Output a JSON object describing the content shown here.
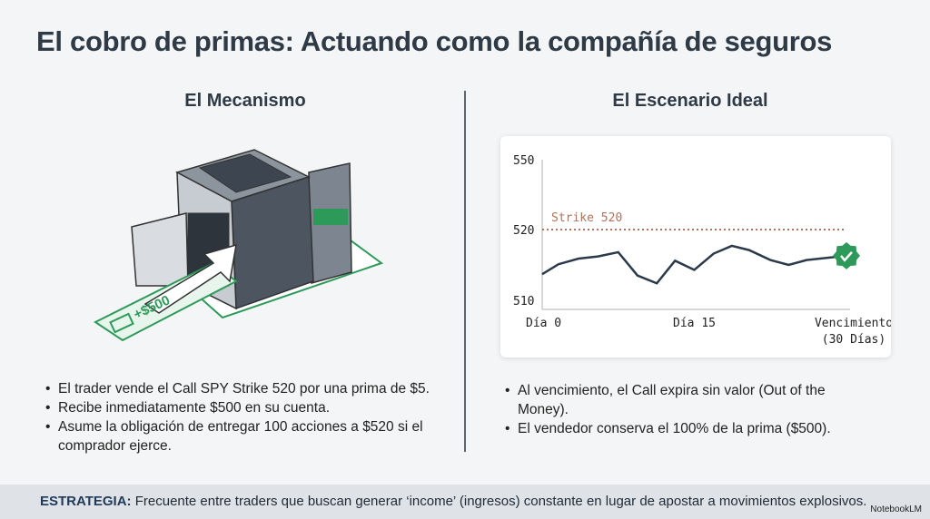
{
  "title": "El cobro de primas: Actuando como la compañía de seguros",
  "left": {
    "heading": "El Mecanismo",
    "illustration_label": "+$500",
    "bullets": [
      "El trader vende el Call SPY Strike 520 por una prima de $5.",
      "Recibe inmediatamente $500 en su cuenta.",
      "Asume la obligación de entregar 100 acciones a $520 si el comprador ejerce."
    ]
  },
  "right": {
    "heading": "El Escenario Ideal",
    "bullets": [
      "Al vencimiento, el Call expira sin valor (Out of the Money).",
      "El vendedor conserva el 100% de la prima ($500)."
    ]
  },
  "chart_data": {
    "type": "line",
    "y_ticks": [
      510,
      520,
      550
    ],
    "x_tick_labels": [
      "Día 0",
      "Día 15",
      "Vencimiento",
      "(30 Días)"
    ],
    "x_ticks": [
      0,
      15,
      30
    ],
    "strike": {
      "label": "Strike 520",
      "value": 520
    },
    "x": [
      0,
      1.6,
      3.6,
      5.5,
      7.5,
      9.4,
      11.3,
      13.1,
      15,
      16.9,
      18.7,
      20.4,
      22.5,
      24.3,
      26.1,
      30
    ],
    "y": [
      513.7,
      515.1,
      515.9,
      516.2,
      516.8,
      513.5,
      512.4,
      515.6,
      514.3,
      516.6,
      517.7,
      517.1,
      515.7,
      515.0,
      515.7,
      516.3
    ],
    "end_marker": "check-badge-icon",
    "colors": {
      "line": "#2b3a4a",
      "strike": "#b0735a",
      "badge": "#2e9a5a"
    }
  },
  "footer": {
    "label": "ESTRATEGIA:",
    "text": " Frecuente entre traders que buscan generar ‘income’ (ingresos) constante en lugar de apostar a movimientos explosivos.",
    "brand": "NotebookLM"
  }
}
